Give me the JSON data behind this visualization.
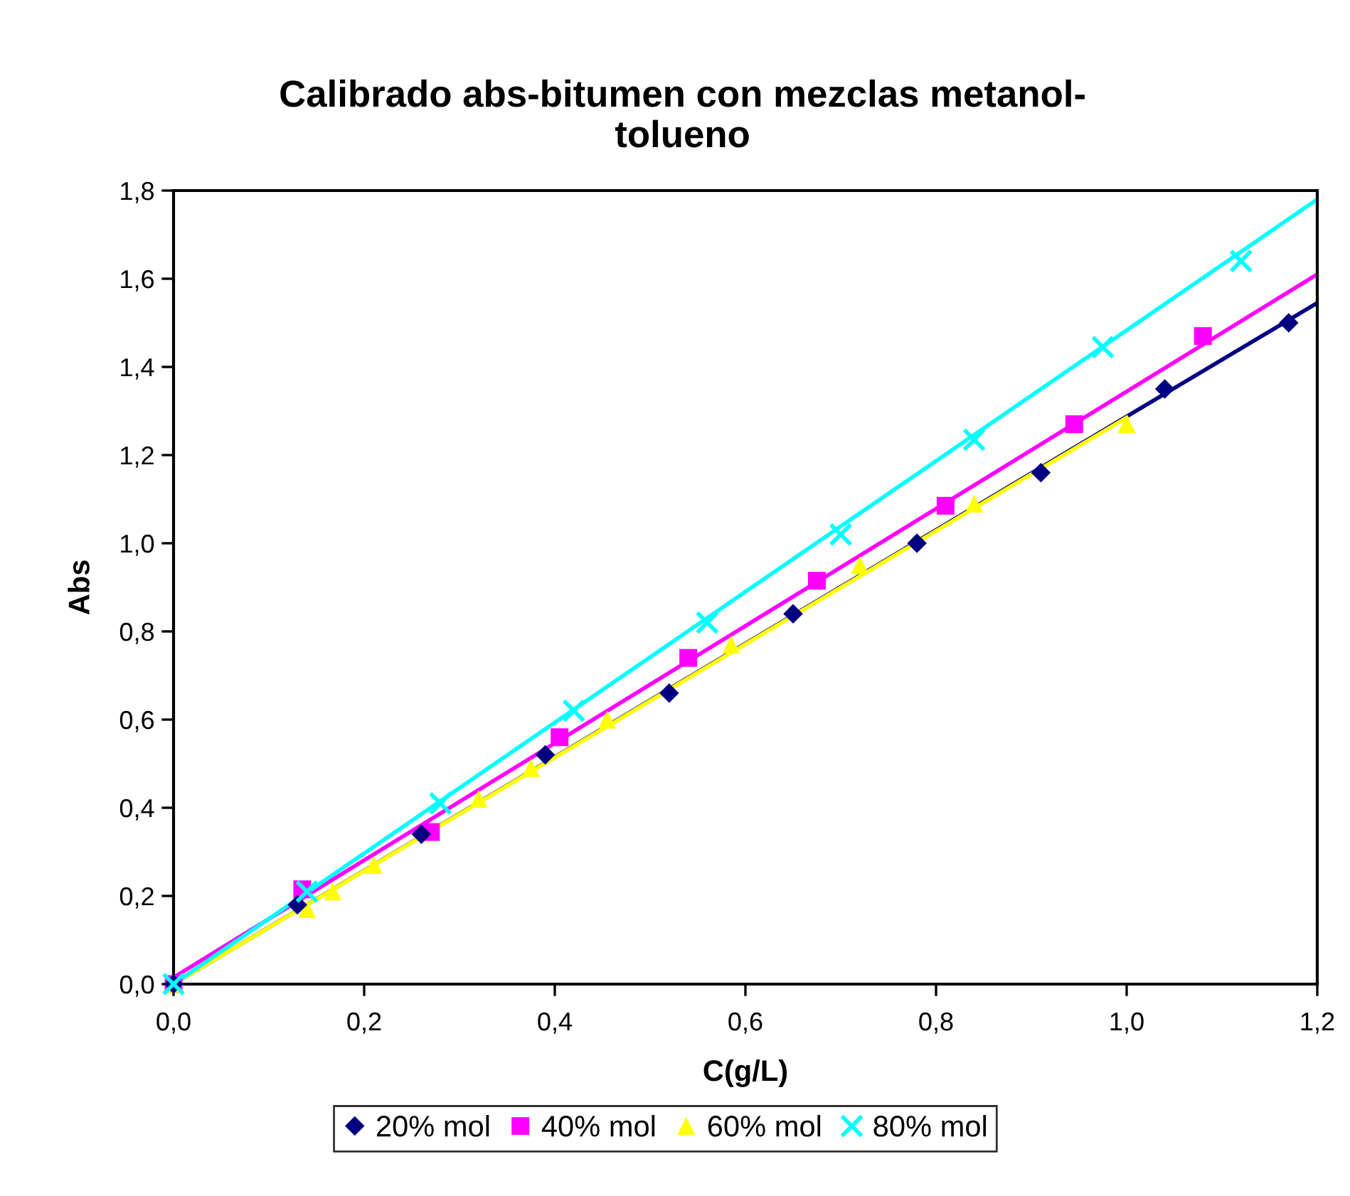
{
  "chart_data": {
    "type": "scatter",
    "title": "Calibrado abs-bitumen con mezclas metanol-\ntolueno",
    "xlabel": "C(g/L)",
    "ylabel": "Abs",
    "xlim": [
      0,
      1.2
    ],
    "ylim": [
      0,
      1.8
    ],
    "xticks": [
      {
        "value": 0,
        "label": "0,0"
      },
      {
        "value": 0.2,
        "label": "0,2"
      },
      {
        "value": 0.4,
        "label": "0,4"
      },
      {
        "value": 0.6,
        "label": "0,6"
      },
      {
        "value": 0.8,
        "label": "0,8"
      },
      {
        "value": 1.0,
        "label": "1,0"
      },
      {
        "value": 1.2,
        "label": "1,2"
      }
    ],
    "yticks": [
      {
        "value": 0,
        "label": "0,0"
      },
      {
        "value": 0.2,
        "label": "0,2"
      },
      {
        "value": 0.4,
        "label": "0,4"
      },
      {
        "value": 0.6,
        "label": "0,6"
      },
      {
        "value": 0.8,
        "label": "0,8"
      },
      {
        "value": 1.0,
        "label": "1,0"
      },
      {
        "value": 1.2,
        "label": "1,2"
      },
      {
        "value": 1.4,
        "label": "1,4"
      },
      {
        "value": 1.6,
        "label": "1,6"
      },
      {
        "value": 1.8,
        "label": "1,8"
      }
    ],
    "grid": false,
    "legend": "bottom",
    "series": [
      {
        "type": "line",
        "color": "#000080",
        "x": [
          0,
          1.2
        ],
        "values": [
          0,
          1.545
        ],
        "marker": "none"
      },
      {
        "type": "line",
        "color": "#ff00ff",
        "x": [
          0,
          1.2
        ],
        "values": [
          0.015,
          1.61
        ],
        "marker": "none"
      },
      {
        "type": "line",
        "color": "#ffff00",
        "x": [
          0,
          1.0
        ],
        "values": [
          0,
          1.285
        ],
        "marker": "none"
      },
      {
        "type": "line",
        "color": "#00ffff",
        "x": [
          0,
          1.2
        ],
        "values": [
          0,
          1.78
        ],
        "marker": "none"
      },
      {
        "name": "20% mol",
        "color": "#000080",
        "marker": "diamond",
        "x": [
          0,
          0.13,
          0.26,
          0.39,
          0.52,
          0.65,
          0.78,
          0.91,
          1.04,
          1.17
        ],
        "values": [
          0,
          0.18,
          0.34,
          0.52,
          0.66,
          0.84,
          1.0,
          1.16,
          1.35,
          1.5
        ]
      },
      {
        "name": "40% mol",
        "color": "#ff00ff",
        "marker": "square",
        "x": [
          0,
          0.135,
          0.27,
          0.405,
          0.54,
          0.675,
          0.81,
          0.945,
          1.08
        ],
        "values": [
          0,
          0.215,
          0.345,
          0.56,
          0.74,
          0.915,
          1.085,
          1.27,
          1.47
        ]
      },
      {
        "name": "60% mol",
        "color": "#ffff00",
        "marker": "triangle",
        "x": [
          0,
          0.14,
          0.167,
          0.21,
          0.32,
          0.375,
          0.455,
          0.585,
          0.72,
          0.84,
          1.0
        ],
        "values": [
          0,
          0.17,
          0.21,
          0.27,
          0.42,
          0.49,
          0.6,
          0.77,
          0.95,
          1.09,
          1.27
        ]
      },
      {
        "name": "80% mol",
        "color": "#00ffff",
        "marker": "cross",
        "x": [
          0,
          0.14,
          0.28,
          0.42,
          0.56,
          0.7,
          0.84,
          0.975,
          1.12
        ],
        "values": [
          0,
          0.21,
          0.41,
          0.62,
          0.82,
          1.02,
          1.235,
          1.445,
          1.64
        ]
      }
    ]
  }
}
